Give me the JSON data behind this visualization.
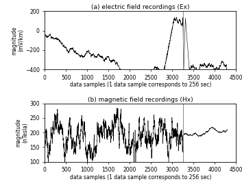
{
  "title_a": "(a) electric field recordings (Ex)",
  "title_b": "(b) magnetic field recordings (Hx)",
  "xlabel": "data samples (1 data sample corresponds to 256 sec)",
  "ylabel_a": "magnitude\n(mV/km)",
  "ylabel_b": "magnitude\n(nTesla)",
  "xlim": [
    0,
    4500
  ],
  "ylim_a": [
    -400,
    200
  ],
  "ylim_b": [
    100,
    300
  ],
  "xticks": [
    0,
    500,
    1000,
    1500,
    2000,
    2500,
    3000,
    3500,
    4000,
    4500
  ],
  "yticks_a": [
    -400,
    -200,
    0,
    200
  ],
  "yticks_b": [
    100,
    150,
    200,
    250,
    300
  ],
  "vline_x": 3250,
  "vline_color": "#888888",
  "line_color": "#000000",
  "bg_color": "#ffffff",
  "n_samples": 4300,
  "seed": 7
}
